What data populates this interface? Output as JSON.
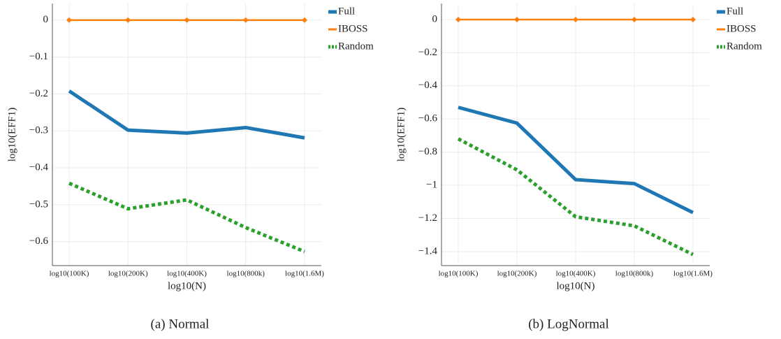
{
  "chart_data": [
    {
      "type": "line",
      "caption": "(a) Normal",
      "x_label": "log10(N)",
      "y_label": "log10(EFF1)",
      "categories": [
        "log10(100K)",
        "log10(200K)",
        "log10(400K)",
        "log10(800k)",
        "log10(1.6M)"
      ],
      "series": [
        {
          "name": "Full",
          "color": "#1f77b4",
          "values": [
            -0.192,
            -0.298,
            -0.306,
            -0.291,
            -0.319
          ]
        },
        {
          "name": "IBOSS",
          "color": "#ff7f0e",
          "values": [
            0,
            0,
            0,
            0,
            0
          ]
        },
        {
          "name": "Random",
          "color": "#2ca02c",
          "values": [
            -0.442,
            -0.511,
            -0.487,
            -0.562,
            -0.627
          ]
        }
      ],
      "ylim": [
        -0.665,
        0.045
      ],
      "yticks": [
        0,
        {
          "value": -0.1,
          "label": "−0.1"
        },
        {
          "value": -0.2,
          "label": "−0.2"
        },
        {
          "value": -0.3,
          "label": "−0.3"
        },
        {
          "value": -0.4,
          "label": "−0.4"
        },
        {
          "value": -0.5,
          "label": "−0.5"
        },
        {
          "value": -0.6,
          "label": "−0.6"
        }
      ],
      "grid": true,
      "legend": "outside-right"
    },
    {
      "type": "line",
      "caption": "(b) LogNormal",
      "x_label": "log10(N)",
      "y_label": "log10(EFF1)",
      "categories": [
        "log10(100K)",
        "log10(200K)",
        "log10(400K)",
        "log10(800k)",
        "log10(1.6M)"
      ],
      "series": [
        {
          "name": "Full",
          "color": "#1f77b4",
          "values": [
            -0.53,
            -0.625,
            -0.966,
            -0.99,
            -1.165
          ]
        },
        {
          "name": "IBOSS",
          "color": "#ff7f0e",
          "values": [
            0,
            0,
            0,
            0,
            0
          ]
        },
        {
          "name": "Random",
          "color": "#2ca02c",
          "values": [
            -0.72,
            -0.907,
            -1.19,
            -1.245,
            -1.418
          ]
        }
      ],
      "ylim": [
        -1.485,
        0.097
      ],
      "yticks": [
        0,
        {
          "value": -0.2,
          "label": "−0.2"
        },
        {
          "value": -0.4,
          "label": "−0.4"
        },
        {
          "value": -0.6,
          "label": "−0.6"
        },
        {
          "value": -0.8,
          "label": "−0.8"
        },
        {
          "value": -1,
          "label": "−1"
        },
        {
          "value": -1.2,
          "label": "−1.2"
        },
        {
          "value": -1.4,
          "label": "−1.4"
        }
      ],
      "grid": true,
      "legend": "outside-right"
    }
  ]
}
